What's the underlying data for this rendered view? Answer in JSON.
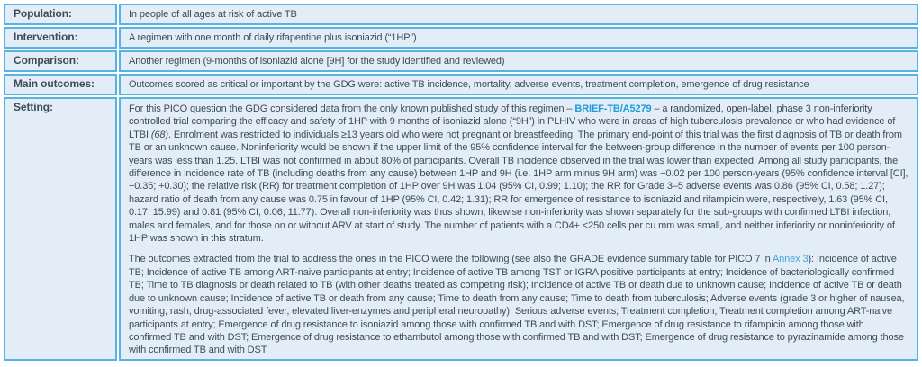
{
  "colors": {
    "cell_background": "#e3edf7",
    "cell_border": "#55b4e1",
    "body_text": "#3e4b57",
    "link_bold": "#1b9cd8",
    "link_light": "#3fa7da"
  },
  "table": {
    "rows": [
      {
        "label": "Population:",
        "value": "In people of all ages at risk of active TB"
      },
      {
        "label": "Intervention:",
        "value": "A regimen with one month of daily rifapentine plus isoniazid (“1HP”)"
      },
      {
        "label": "Comparison:",
        "value": "Another regimen (9-months of isoniazid alone [9H] for the study identified and reviewed)"
      },
      {
        "label": "Main outcomes:",
        "value": "Outcomes scored as critical or important by the GDG were: active TB incidence, mortality, adverse events, treatment completion, emergence of drug resistance"
      },
      {
        "label": "Setting:",
        "paragraph1": {
          "text_before_link": "For this PICO question the GDG considered data from the only known published study of this regimen – ",
          "link_label": "BRIEF-TB/A5279",
          "text_after_link": " – a randomized, open-label, phase 3 non-inferiority controlled trial comparing the efficacy and safety of 1HP with 9 months of isoniazid alone (“9H”) in PLHIV who were in areas of high tuberculosis prevalence or who had evidence of LTBI ",
          "reference": "(68)",
          "text_after_reference": ". Enrolment was restricted to individuals ≥13 years old who were not pregnant or breastfeeding. The primary end-point of this trial was the first diagnosis of TB or death from TB or an unknown cause. Noninferiority would be shown if the upper limit of the 95% confidence interval for the between-group difference in the number of events per 100 person-years was less than 1.25. LTBI was not confirmed in about 80% of participants. Overall TB incidence observed in the trial was lower than expected. Among all study participants, the difference in incidence rate of TB (including deaths from any cause) between 1HP and 9H (i.e. 1HP arm minus 9H arm) was −0.02 per 100 person-years (95% confidence interval [CI], −0.35; +0.30); the relative risk (RR) for treatment completion of 1HP over 9H was 1.04 (95% CI, 0.99; 1.10); the RR for Grade 3–5 adverse events was 0.86 (95% CI, 0.58; 1.27); hazard ratio of death from any cause was 0.75 in favour of 1HP (95% CI, 0.42; 1.31); RR for emergence of resistance to isoniazid and rifampicin were, respectively, 1.63 (95% CI, 0.17; 15.99) and 0.81 (95% CI, 0.06; 11.77). Overall non-inferiority was thus shown; likewise non-inferiority was shown separately for the sub-groups with confirmed LTBI infection, males and females, and for those on or without ARV at start of study. The number of patients with a CD4+ <250 cells per cu mm was small, and neither inferiority or noninferiority of 1HP was shown in this stratum."
        },
        "paragraph2": {
          "text_before_link": "The outcomes extracted from the trial to address the ones in the PICO were the following (see also the GRADE evidence summary table for PICO 7 in ",
          "link_label": "Annex 3",
          "text_after_link": "): Incidence of active TB; Incidence of active TB among ART-naive participants at entry; Incidence of active TB among TST or IGRA positive participants at entry; Incidence of bacteriologically confirmed TB; Time to TB diagnosis or death related to TB (with other deaths treated as competing risk); Incidence of active TB or death due to unknown cause; Incidence of active TB or death due to unknown cause; Incidence of active TB or death from any cause; Time to death from any cause; Time to death from tuberculosis; Adverse events (grade 3 or higher of nausea, vomiting, rash, drug-associated fever, elevated liver-enzymes and peripheral neuropathy); Serious adverse events; Treatment completion; Treatment completion among ART-naive participants at entry; Emergence of drug resistance to isoniazid among those with confirmed TB and with DST; Emergence of drug resistance to rifampicin among those with confirmed TB and with DST; Emergence of drug resistance to ethambutol among those with confirmed TB and with DST; Emergence of drug resistance to pyrazinamide among those with confirmed TB and with DST"
        }
      }
    ]
  }
}
